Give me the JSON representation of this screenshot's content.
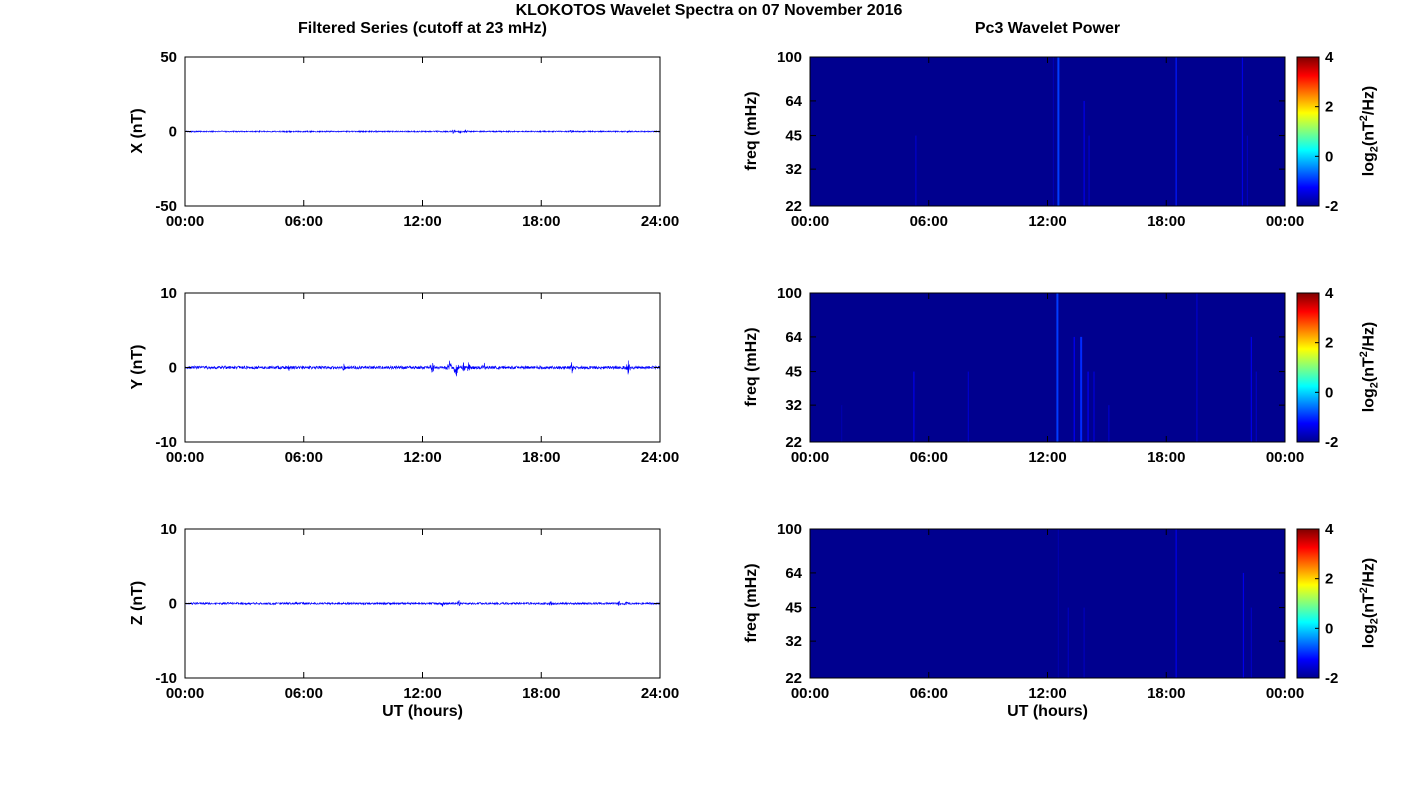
{
  "page": {
    "main_title": "KLOKOTOS Wavelet Spectra on 07 November 2016",
    "colorbar_label": {
      "prefix": "log",
      "sub": "2",
      "open": "(nT",
      "sup": "2",
      "close": "/Hz)"
    }
  },
  "colors": {
    "series_line": "#0000ff",
    "spectrogram_background": "#00008f",
    "axis": "#000000",
    "background": "#ffffff"
  },
  "chart_data": [
    {
      "id": "filtered-series-x",
      "type": "line",
      "title": "Filtered Series (cutoff at 23 mHz)",
      "ylabel": "X (nT)",
      "ylim": [
        -50,
        50
      ],
      "yticks": [
        -50,
        0,
        50
      ],
      "xlim_hours": [
        0,
        24
      ],
      "xticks": [
        "00:00",
        "06:00",
        "12:00",
        "18:00",
        "24:00"
      ],
      "baseline_nT": 0,
      "noise_amplitude_nT": 0.4,
      "seed": 101,
      "spikes": [
        {
          "t": 5.35,
          "amp": 0.5
        },
        {
          "t": 12.7,
          "amp": 0.8
        },
        {
          "t": 13.6,
          "amp": 2.2
        },
        {
          "t": 13.9,
          "amp": 1.5
        },
        {
          "t": 14.2,
          "amp": 1.0
        },
        {
          "t": 19.5,
          "amp": 1.3
        },
        {
          "t": 22.4,
          "amp": 0.9
        }
      ]
    },
    {
      "id": "filtered-series-y",
      "type": "line",
      "ylabel": "Y (nT)",
      "ylim": [
        -10,
        10
      ],
      "yticks": [
        -10,
        0,
        10
      ],
      "xlim_hours": [
        0,
        24
      ],
      "xticks": [
        "00:00",
        "06:00",
        "12:00",
        "18:00",
        "24:00"
      ],
      "baseline_nT": 0,
      "noise_amplitude_nT": 0.2,
      "seed": 202,
      "spikes": [
        {
          "t": 5.25,
          "amp": 0.5
        },
        {
          "t": 8.0,
          "amp": 0.4
        },
        {
          "t": 12.5,
          "amp": 0.9
        },
        {
          "t": 13.35,
          "amp": 1.2
        },
        {
          "t": 13.7,
          "amp": 1.6
        },
        {
          "t": 14.05,
          "amp": 1.1
        },
        {
          "t": 14.35,
          "amp": 0.8
        },
        {
          "t": 15.1,
          "amp": 0.7
        },
        {
          "t": 19.55,
          "amp": 0.8
        },
        {
          "t": 22.4,
          "amp": 1.0
        }
      ]
    },
    {
      "id": "filtered-series-z",
      "type": "line",
      "ylabel": "Z (nT)",
      "xlabel": "UT (hours)",
      "ylim": [
        -10,
        10
      ],
      "yticks": [
        -10,
        0,
        10
      ],
      "xlim_hours": [
        0,
        24
      ],
      "xticks": [
        "00:00",
        "06:00",
        "12:00",
        "18:00",
        "24:00"
      ],
      "baseline_nT": 0,
      "noise_amplitude_nT": 0.13,
      "seed": 303,
      "spikes": [
        {
          "t": 13.0,
          "amp": 0.5
        },
        {
          "t": 13.85,
          "amp": 0.5
        },
        {
          "t": 18.5,
          "amp": 0.35
        },
        {
          "t": 21.9,
          "amp": 0.4
        },
        {
          "t": 22.3,
          "amp": 0.3
        }
      ]
    },
    {
      "id": "wavelet-power-x",
      "type": "heatmap",
      "title": "Pc3 Wavelet Power",
      "ylabel": "freq (mHz)",
      "ylim": [
        22,
        100
      ],
      "yscale": "log",
      "yticks": [
        22,
        32,
        45,
        64,
        100
      ],
      "xlim_hours": [
        0,
        24
      ],
      "xticks": [
        "00:00",
        "06:00",
        "12:00",
        "18:00",
        "00:00"
      ],
      "background_power_log2": -2,
      "colorbar": {
        "range": [
          -2,
          4
        ],
        "ticks": [
          4,
          2,
          0,
          -2
        ]
      },
      "streaks": [
        {
          "t": 5.35,
          "power": -1.6,
          "f_top": 45
        },
        {
          "t": 12.3,
          "power": -1.75,
          "f_top": 100
        },
        {
          "t": 12.55,
          "power": -0.9,
          "f_top": 100,
          "width": 2
        },
        {
          "t": 13.85,
          "power": -1.4,
          "f_top": 64
        },
        {
          "t": 14.1,
          "power": -1.6,
          "f_top": 45
        },
        {
          "t": 18.5,
          "power": -1.1,
          "f_top": 100
        },
        {
          "t": 21.85,
          "power": -1.45,
          "f_top": 100
        },
        {
          "t": 22.1,
          "power": -1.7,
          "f_top": 45
        }
      ]
    },
    {
      "id": "wavelet-power-y",
      "type": "heatmap",
      "ylabel": "freq (mHz)",
      "ylim": [
        22,
        100
      ],
      "yscale": "log",
      "yticks": [
        22,
        32,
        45,
        64,
        100
      ],
      "xlim_hours": [
        0,
        24
      ],
      "xticks": [
        "00:00",
        "06:00",
        "12:00",
        "18:00",
        "00:00"
      ],
      "background_power_log2": -2,
      "colorbar": {
        "range": [
          -2,
          4
        ],
        "ticks": [
          4,
          2,
          0,
          -2
        ]
      },
      "streaks": [
        {
          "t": 1.6,
          "power": -1.8,
          "f_top": 32
        },
        {
          "t": 5.25,
          "power": -1.4,
          "f_top": 45
        },
        {
          "t": 8.0,
          "power": -1.6,
          "f_top": 45
        },
        {
          "t": 12.5,
          "power": -0.9,
          "f_top": 100,
          "width": 2
        },
        {
          "t": 13.35,
          "power": -1.3,
          "f_top": 64
        },
        {
          "t": 13.7,
          "power": -1.0,
          "f_top": 64,
          "width": 2
        },
        {
          "t": 14.05,
          "power": -1.3,
          "f_top": 45
        },
        {
          "t": 14.35,
          "power": -1.5,
          "f_top": 45
        },
        {
          "t": 15.1,
          "power": -1.6,
          "f_top": 32
        },
        {
          "t": 19.55,
          "power": -1.6,
          "f_top": 100
        },
        {
          "t": 22.3,
          "power": -1.4,
          "f_top": 64
        },
        {
          "t": 22.55,
          "power": -1.65,
          "f_top": 45
        }
      ]
    },
    {
      "id": "wavelet-power-z",
      "type": "heatmap",
      "ylabel": "freq (mHz)",
      "xlabel": "UT (hours)",
      "ylim": [
        22,
        100
      ],
      "yscale": "log",
      "yticks": [
        22,
        32,
        45,
        64,
        100
      ],
      "xlim_hours": [
        0,
        24
      ],
      "xticks": [
        "00:00",
        "06:00",
        "12:00",
        "18:00",
        "00:00"
      ],
      "background_power_log2": -2,
      "colorbar": {
        "range": [
          -2,
          4
        ],
        "ticks": [
          4,
          2,
          0,
          -2
        ]
      },
      "streaks": [
        {
          "t": 12.55,
          "power": -1.8,
          "f_top": 100
        },
        {
          "t": 13.05,
          "power": -1.7,
          "f_top": 45
        },
        {
          "t": 13.85,
          "power": -1.7,
          "f_top": 45
        },
        {
          "t": 18.5,
          "power": -1.4,
          "f_top": 100
        },
        {
          "t": 21.9,
          "power": -1.4,
          "f_top": 64
        },
        {
          "t": 22.3,
          "power": -1.65,
          "f_top": 45
        }
      ]
    }
  ]
}
